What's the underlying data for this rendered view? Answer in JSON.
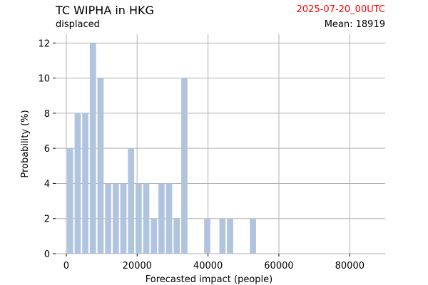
{
  "header": {
    "title": "TC WIPHA in HKG",
    "subtitle": "displaced",
    "date": "2025-07-20_00UTC",
    "mean_label": "Mean: 18919"
  },
  "colors": {
    "bar": "#b0c4de",
    "grid": "#b0b0b0",
    "date_text": "#ff0000"
  },
  "chart_data": {
    "type": "bar",
    "title": "TC WIPHA in HKG",
    "subtitle": "displaced",
    "xlabel": "Forecasted impact (people)",
    "ylabel": "Probability (%)",
    "xlim": [
      -3000,
      90000
    ],
    "ylim": [
      0,
      12.5
    ],
    "xticks": [
      0,
      20000,
      40000,
      60000,
      80000
    ],
    "yticks": [
      0,
      2,
      4,
      6,
      8,
      10,
      12
    ],
    "grid": true,
    "bin_width": 2150,
    "x": [
      0,
      2150,
      4300,
      6450,
      8600,
      10750,
      12900,
      15050,
      17200,
      19350,
      21500,
      23650,
      25800,
      27950,
      30100,
      32250,
      34400,
      36550,
      38700,
      40850,
      43000,
      45150,
      47300,
      49450,
      51600
    ],
    "values": [
      6,
      8,
      8,
      12,
      10,
      4,
      4,
      4,
      6,
      4,
      4,
      2,
      4,
      4,
      2,
      10,
      0,
      0,
      2,
      0,
      2,
      2,
      0,
      0,
      2
    ]
  }
}
